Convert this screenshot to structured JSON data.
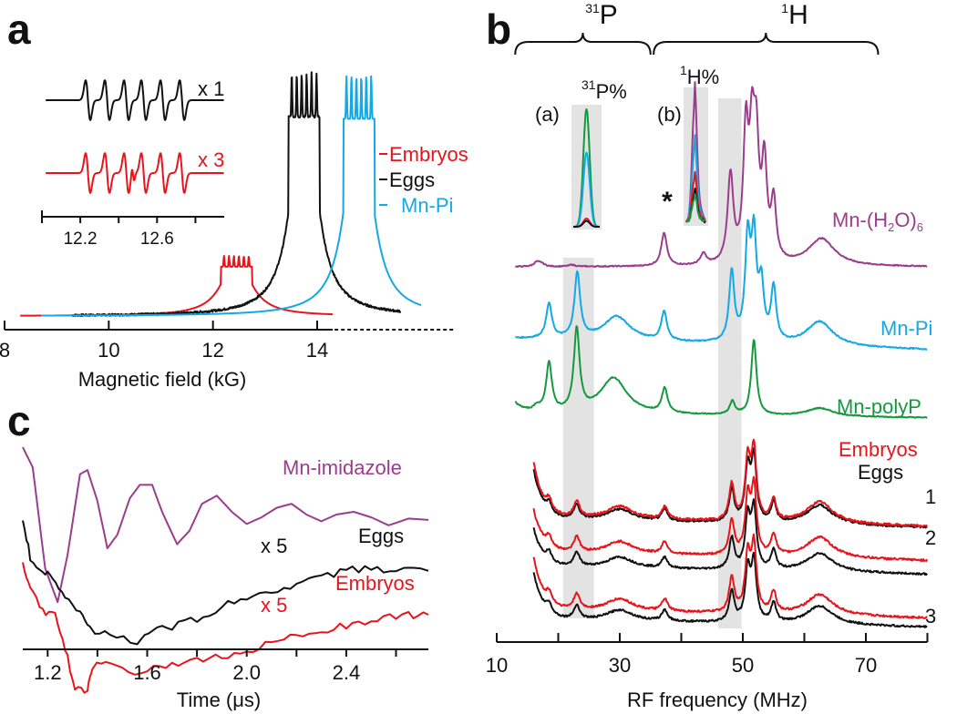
{
  "colors": {
    "embryos": "#e8141c",
    "eggs": "#111111",
    "mn_pi": "#13a8e6",
    "mn_h2o": "#9b3d8c",
    "mn_polyp": "#14993e",
    "mn_imidazole": "#9b3d8c",
    "shade": "#e3e3e3"
  },
  "chart_data": [
    {
      "panel": "a",
      "type": "line",
      "title": "",
      "panel_label": "a",
      "xlabel": "Magnetic field (kG)",
      "ylabel": "",
      "xlim": [
        8,
        16
      ],
      "xticks": [
        "8",
        "10",
        "12",
        "14"
      ],
      "xtick_values": [
        8,
        10,
        12,
        14
      ],
      "axis_break_after": 14.3,
      "grid": false,
      "legend": {
        "placement": "right",
        "entries": [
          "Embryos",
          "Eggs",
          "Mn-Pi"
        ]
      },
      "series": [
        {
          "name": "Embryos",
          "color_key": "embryos",
          "center": 12.45,
          "peak": 0.23,
          "width": 0.55,
          "range": [
            8.3,
            14.3
          ],
          "hyperfine_lines": 6,
          "hyperfine_spacing": 0.095
        },
        {
          "name": "Eggs",
          "color_key": "eggs",
          "center": 13.75,
          "peak": 0.93,
          "width": 0.45,
          "range": [
            9.3,
            15.6
          ],
          "hyperfine_lines": 6,
          "hyperfine_spacing": 0.095,
          "noisy": true
        },
        {
          "name": "Mn-Pi",
          "color_key": "mn_pi",
          "center": 14.8,
          "peak": 0.92,
          "width": 0.45,
          "range": [
            8.7,
            16.0
          ],
          "hyperfine_lines": 6,
          "hyperfine_spacing": 0.095
        }
      ],
      "inset": {
        "type": "line",
        "xlim": [
          12.0,
          12.95
        ],
        "xticks": [
          "12.2",
          "12.6"
        ],
        "xtick_values": [
          12.2,
          12.6
        ],
        "minor_ticks": [
          12.0,
          12.4,
          12.8
        ],
        "series": [
          {
            "name": "Eggs",
            "scale_label": "x 1",
            "color_key": "eggs",
            "line_positions": [
              12.24,
              12.34,
              12.44,
              12.53,
              12.63,
              12.73
            ]
          },
          {
            "name": "Embryos",
            "scale_label": "x 3",
            "color_key": "embryos",
            "line_positions": [
              12.24,
              12.34,
              12.44,
              12.53,
              12.63,
              12.73
            ],
            "extra_feature_at": 12.475
          }
        ]
      }
    },
    {
      "panel": "b",
      "type": "line",
      "panel_label": "b",
      "xlabel": "RF frequency (MHz)",
      "ylabel": "",
      "xlim": [
        10,
        80
      ],
      "xticks": [
        "10",
        "30",
        "50",
        "70"
      ],
      "xtick_values": [
        10,
        30,
        50,
        70
      ],
      "minor_ticks": [
        20,
        40,
        60,
        80
      ],
      "grid": false,
      "brackets": [
        {
          "label_sup": "31",
          "label": "P",
          "range": [
            13,
            35
          ]
        },
        {
          "label_sup": "1",
          "label": "H",
          "range": [
            35.5,
            72
          ]
        }
      ],
      "shaded_regions": [
        [
          20.8,
          25.8
        ],
        [
          46,
          49.8
        ]
      ],
      "asterisk_at": 37.2,
      "series": [
        {
          "name": "Mn-(H2O)6",
          "label_main": "Mn-(H",
          "label_sub": "2",
          "label_mid": "O)",
          "label_sub2": "6",
          "color_key": "mn_h2o",
          "peaks": [
            [
              16.5,
              0.12
            ],
            [
              17.3,
              0.08
            ],
            [
              22.2,
              0.05
            ],
            [
              37.2,
              0.9
            ],
            [
              43.6,
              0.3
            ],
            [
              48.0,
              2.4
            ],
            [
              50.5,
              3.45
            ],
            [
              51.5,
              3.0
            ],
            [
              52.2,
              2.85
            ],
            [
              53.5,
              2.6
            ],
            [
              55.0,
              1.6
            ],
            [
              62.8,
              0.75
            ]
          ]
        },
        {
          "name": "Mn-Pi",
          "color_key": "mn_pi",
          "peaks": [
            [
              18.5,
              0.85
            ],
            [
              23.1,
              1.6
            ],
            [
              29.5,
              0.6
            ],
            [
              37.2,
              0.7
            ],
            [
              48.2,
              1.7
            ],
            [
              50.8,
              2.4
            ],
            [
              51.8,
              2.4
            ],
            [
              53.0,
              1.3
            ],
            [
              55.0,
              1.3
            ],
            [
              62.5,
              0.6
            ]
          ]
        },
        {
          "name": "Mn-polyP",
          "color_key": "mn_polyp",
          "peaks": [
            [
              16.5,
              0.15
            ],
            [
              18.5,
              1.5
            ],
            [
              23.0,
              2.5
            ],
            [
              29.0,
              1.1
            ],
            [
              37.3,
              0.75
            ],
            [
              48.3,
              0.4
            ],
            [
              51.8,
              2.3
            ],
            [
              62.5,
              0.25
            ]
          ]
        },
        {
          "name": "Embryos / Eggs 1",
          "index_label": "1"
        },
        {
          "name": "Embryos / Eggs 2",
          "index_label": "2"
        },
        {
          "name": "Embryos / Eggs 3",
          "index_label": "3"
        }
      ],
      "legend_labels": {
        "embryos": "Embryos",
        "eggs": "Eggs"
      },
      "insets": [
        {
          "tag": "(a)",
          "label_sup": "31",
          "label": "P%",
          "series": [
            "Mn-polyP",
            "Mn-Pi",
            "Embryos",
            "Eggs"
          ],
          "relative_heights": [
            1.0,
            0.63,
            0.07,
            0.05
          ]
        },
        {
          "tag": "(b)",
          "label_sup": "1",
          "label": "H%",
          "series": [
            "Mn-(H2O)6",
            "Mn-Pi",
            "Embryos",
            "Eggs",
            "Mn-polyP"
          ],
          "relative_heights": [
            1.0,
            0.62,
            0.36,
            0.23,
            0.2
          ]
        }
      ]
    },
    {
      "panel": "c",
      "type": "line",
      "panel_label": "c",
      "xlabel": "Time (μs)",
      "ylabel": "",
      "xlim": [
        1.1,
        2.73
      ],
      "xticks": [
        "1.2",
        "1.6",
        "2.0",
        "2.4"
      ],
      "xtick_values": [
        1.2,
        1.6,
        2.0,
        2.4
      ],
      "minor_ticks": [
        1.4,
        1.8,
        2.2,
        2.6
      ],
      "grid": false,
      "series": [
        {
          "name": "Mn-imidazole",
          "color_key": "mn_imidazole",
          "scale_label": "",
          "points": [
            [
              1.1,
              0.0
            ],
            [
              1.14,
              -0.15
            ],
            [
              1.19,
              -0.9
            ],
            [
              1.24,
              -1.15
            ],
            [
              1.28,
              -0.8
            ],
            [
              1.33,
              -0.2
            ],
            [
              1.36,
              -0.17
            ],
            [
              1.4,
              -0.4
            ],
            [
              1.44,
              -0.75
            ],
            [
              1.48,
              -0.65
            ],
            [
              1.53,
              -0.38
            ],
            [
              1.57,
              -0.28
            ],
            [
              1.62,
              -0.28
            ],
            [
              1.66,
              -0.48
            ],
            [
              1.72,
              -0.72
            ],
            [
              1.77,
              -0.62
            ],
            [
              1.82,
              -0.42
            ],
            [
              1.88,
              -0.36
            ],
            [
              1.94,
              -0.48
            ],
            [
              2.0,
              -0.57
            ],
            [
              2.06,
              -0.52
            ],
            [
              2.12,
              -0.45
            ],
            [
              2.18,
              -0.42
            ],
            [
              2.24,
              -0.5
            ],
            [
              2.3,
              -0.55
            ],
            [
              2.36,
              -0.5
            ],
            [
              2.43,
              -0.48
            ],
            [
              2.5,
              -0.52
            ],
            [
              2.57,
              -0.58
            ],
            [
              2.65,
              -0.53
            ],
            [
              2.73,
              -0.54
            ]
          ]
        },
        {
          "name": "Eggs",
          "color_key": "eggs",
          "scale_label": "x 5",
          "points": [
            [
              1.1,
              0.0
            ],
            [
              1.13,
              -0.25
            ],
            [
              1.18,
              -0.35
            ],
            [
              1.22,
              -0.38
            ],
            [
              1.27,
              -0.5
            ],
            [
              1.33,
              -0.6
            ],
            [
              1.37,
              -0.72
            ],
            [
              1.45,
              -0.75
            ],
            [
              1.56,
              -0.8
            ],
            [
              1.62,
              -0.73
            ],
            [
              1.7,
              -0.7
            ],
            [
              1.8,
              -0.65
            ],
            [
              1.9,
              -0.57
            ],
            [
              2.0,
              -0.52
            ],
            [
              2.1,
              -0.48
            ],
            [
              2.2,
              -0.44
            ],
            [
              2.3,
              -0.38
            ],
            [
              2.4,
              -0.34
            ],
            [
              2.5,
              -0.32
            ],
            [
              2.6,
              -0.34
            ],
            [
              2.73,
              -0.34
            ]
          ]
        },
        {
          "name": "Embryos",
          "color_key": "embryos",
          "scale_label": "x 5",
          "points": [
            [
              1.1,
              0.0
            ],
            [
              1.13,
              -0.15
            ],
            [
              1.18,
              -0.28
            ],
            [
              1.23,
              -0.3
            ],
            [
              1.27,
              -0.5
            ],
            [
              1.31,
              -0.75
            ],
            [
              1.36,
              -0.76
            ],
            [
              1.38,
              -0.62
            ],
            [
              1.45,
              -0.58
            ],
            [
              1.55,
              -0.65
            ],
            [
              1.65,
              -0.62
            ],
            [
              1.75,
              -0.6
            ],
            [
              1.85,
              -0.56
            ],
            [
              1.95,
              -0.54
            ],
            [
              2.05,
              -0.5
            ],
            [
              2.15,
              -0.45
            ],
            [
              2.25,
              -0.42
            ],
            [
              2.35,
              -0.38
            ],
            [
              2.45,
              -0.35
            ],
            [
              2.55,
              -0.32
            ],
            [
              2.65,
              -0.3
            ],
            [
              2.73,
              -0.3
            ]
          ]
        }
      ]
    }
  ]
}
